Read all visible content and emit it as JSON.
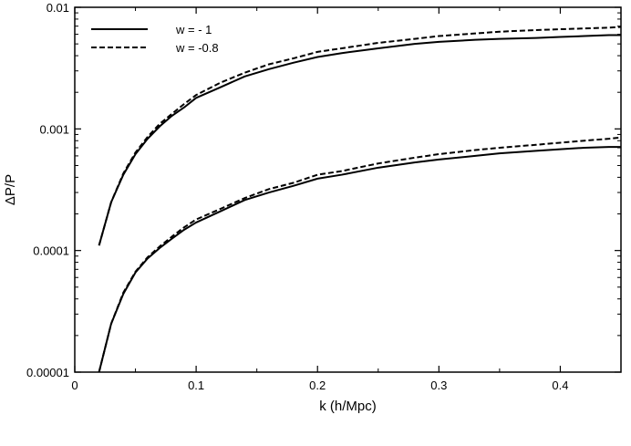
{
  "chart_data": {
    "type": "line",
    "xlabel": "k (h/Mpc)",
    "ylabel": "ΔP/P",
    "xlim": [
      0,
      0.45
    ],
    "ylim": [
      1e-05,
      0.01
    ],
    "yscale": "log",
    "grid": false,
    "legend_position": "top-left",
    "x_ticks": [
      0,
      0.1,
      0.2,
      0.3,
      0.4
    ],
    "x_tick_labels": [
      "0",
      "0.1",
      "0.2",
      "0.3",
      "0.4"
    ],
    "y_ticks": [
      1e-05,
      0.0001,
      0.001,
      0.01
    ],
    "y_tick_labels": [
      "0.00001",
      "0.0001",
      "0.001",
      "0.01"
    ],
    "series": [
      {
        "name": "w = - 1",
        "style": "solid",
        "x": [
          0.02,
          0.03,
          0.04,
          0.05,
          0.06,
          0.07,
          0.08,
          0.09,
          0.1,
          0.12,
          0.14,
          0.16,
          0.18,
          0.2,
          0.22,
          0.25,
          0.28,
          0.3,
          0.33,
          0.35,
          0.38,
          0.4,
          0.42,
          0.44,
          0.45
        ],
        "y": [
          0.00011,
          0.00025,
          0.00042,
          0.00062,
          0.00083,
          0.00105,
          0.00128,
          0.0015,
          0.0018,
          0.0022,
          0.0027,
          0.0031,
          0.0035,
          0.0039,
          0.0042,
          0.0046,
          0.005,
          0.0052,
          0.0054,
          0.0055,
          0.0056,
          0.0057,
          0.0058,
          0.0059,
          0.0059
        ]
      },
      {
        "name": "w = -0.8",
        "style": "dashed",
        "x": [
          0.02,
          0.03,
          0.04,
          0.05,
          0.06,
          0.07,
          0.08,
          0.09,
          0.1,
          0.12,
          0.14,
          0.16,
          0.18,
          0.2,
          0.22,
          0.25,
          0.28,
          0.3,
          0.33,
          0.35,
          0.38,
          0.4,
          0.42,
          0.44,
          0.45
        ],
        "y": [
          0.00011,
          0.00025,
          0.00043,
          0.00064,
          0.00086,
          0.0011,
          0.00133,
          0.0016,
          0.0019,
          0.0024,
          0.0029,
          0.0034,
          0.0038,
          0.0043,
          0.0046,
          0.0051,
          0.0055,
          0.0058,
          0.0061,
          0.0063,
          0.0065,
          0.0066,
          0.0067,
          0.0068,
          0.0069
        ]
      },
      {
        "style": "solid",
        "x": [
          0.02,
          0.03,
          0.04,
          0.05,
          0.06,
          0.07,
          0.08,
          0.09,
          0.1,
          0.12,
          0.14,
          0.16,
          0.18,
          0.2,
          0.22,
          0.25,
          0.28,
          0.3,
          0.33,
          0.35,
          0.38,
          0.4,
          0.42,
          0.44,
          0.45
        ],
        "y": [
          1e-05,
          2.5e-05,
          4.4e-05,
          6.6e-05,
          8.6e-05,
          0.000105,
          0.000125,
          0.000148,
          0.00017,
          0.00021,
          0.00026,
          0.0003,
          0.00034,
          0.00039,
          0.00042,
          0.00048,
          0.00053,
          0.00056,
          0.0006,
          0.00063,
          0.00066,
          0.00068,
          0.0007,
          0.00071,
          0.00071
        ]
      },
      {
        "style": "dashed",
        "x": [
          0.02,
          0.03,
          0.04,
          0.05,
          0.06,
          0.07,
          0.08,
          0.09,
          0.1,
          0.12,
          0.14,
          0.16,
          0.18,
          0.2,
          0.22,
          0.25,
          0.28,
          0.3,
          0.33,
          0.35,
          0.38,
          0.4,
          0.42,
          0.44,
          0.45
        ],
        "y": [
          1e-05,
          2.5e-05,
          4.5e-05,
          6.7e-05,
          8.8e-05,
          0.000108,
          0.00013,
          0.000155,
          0.00018,
          0.00022,
          0.00027,
          0.00032,
          0.00036,
          0.00042,
          0.00045,
          0.00052,
          0.00058,
          0.00062,
          0.00067,
          0.0007,
          0.00074,
          0.00077,
          0.0008,
          0.00083,
          0.00085
        ]
      }
    ]
  },
  "colors": {
    "line": "#000000",
    "background": "#ffffff"
  }
}
